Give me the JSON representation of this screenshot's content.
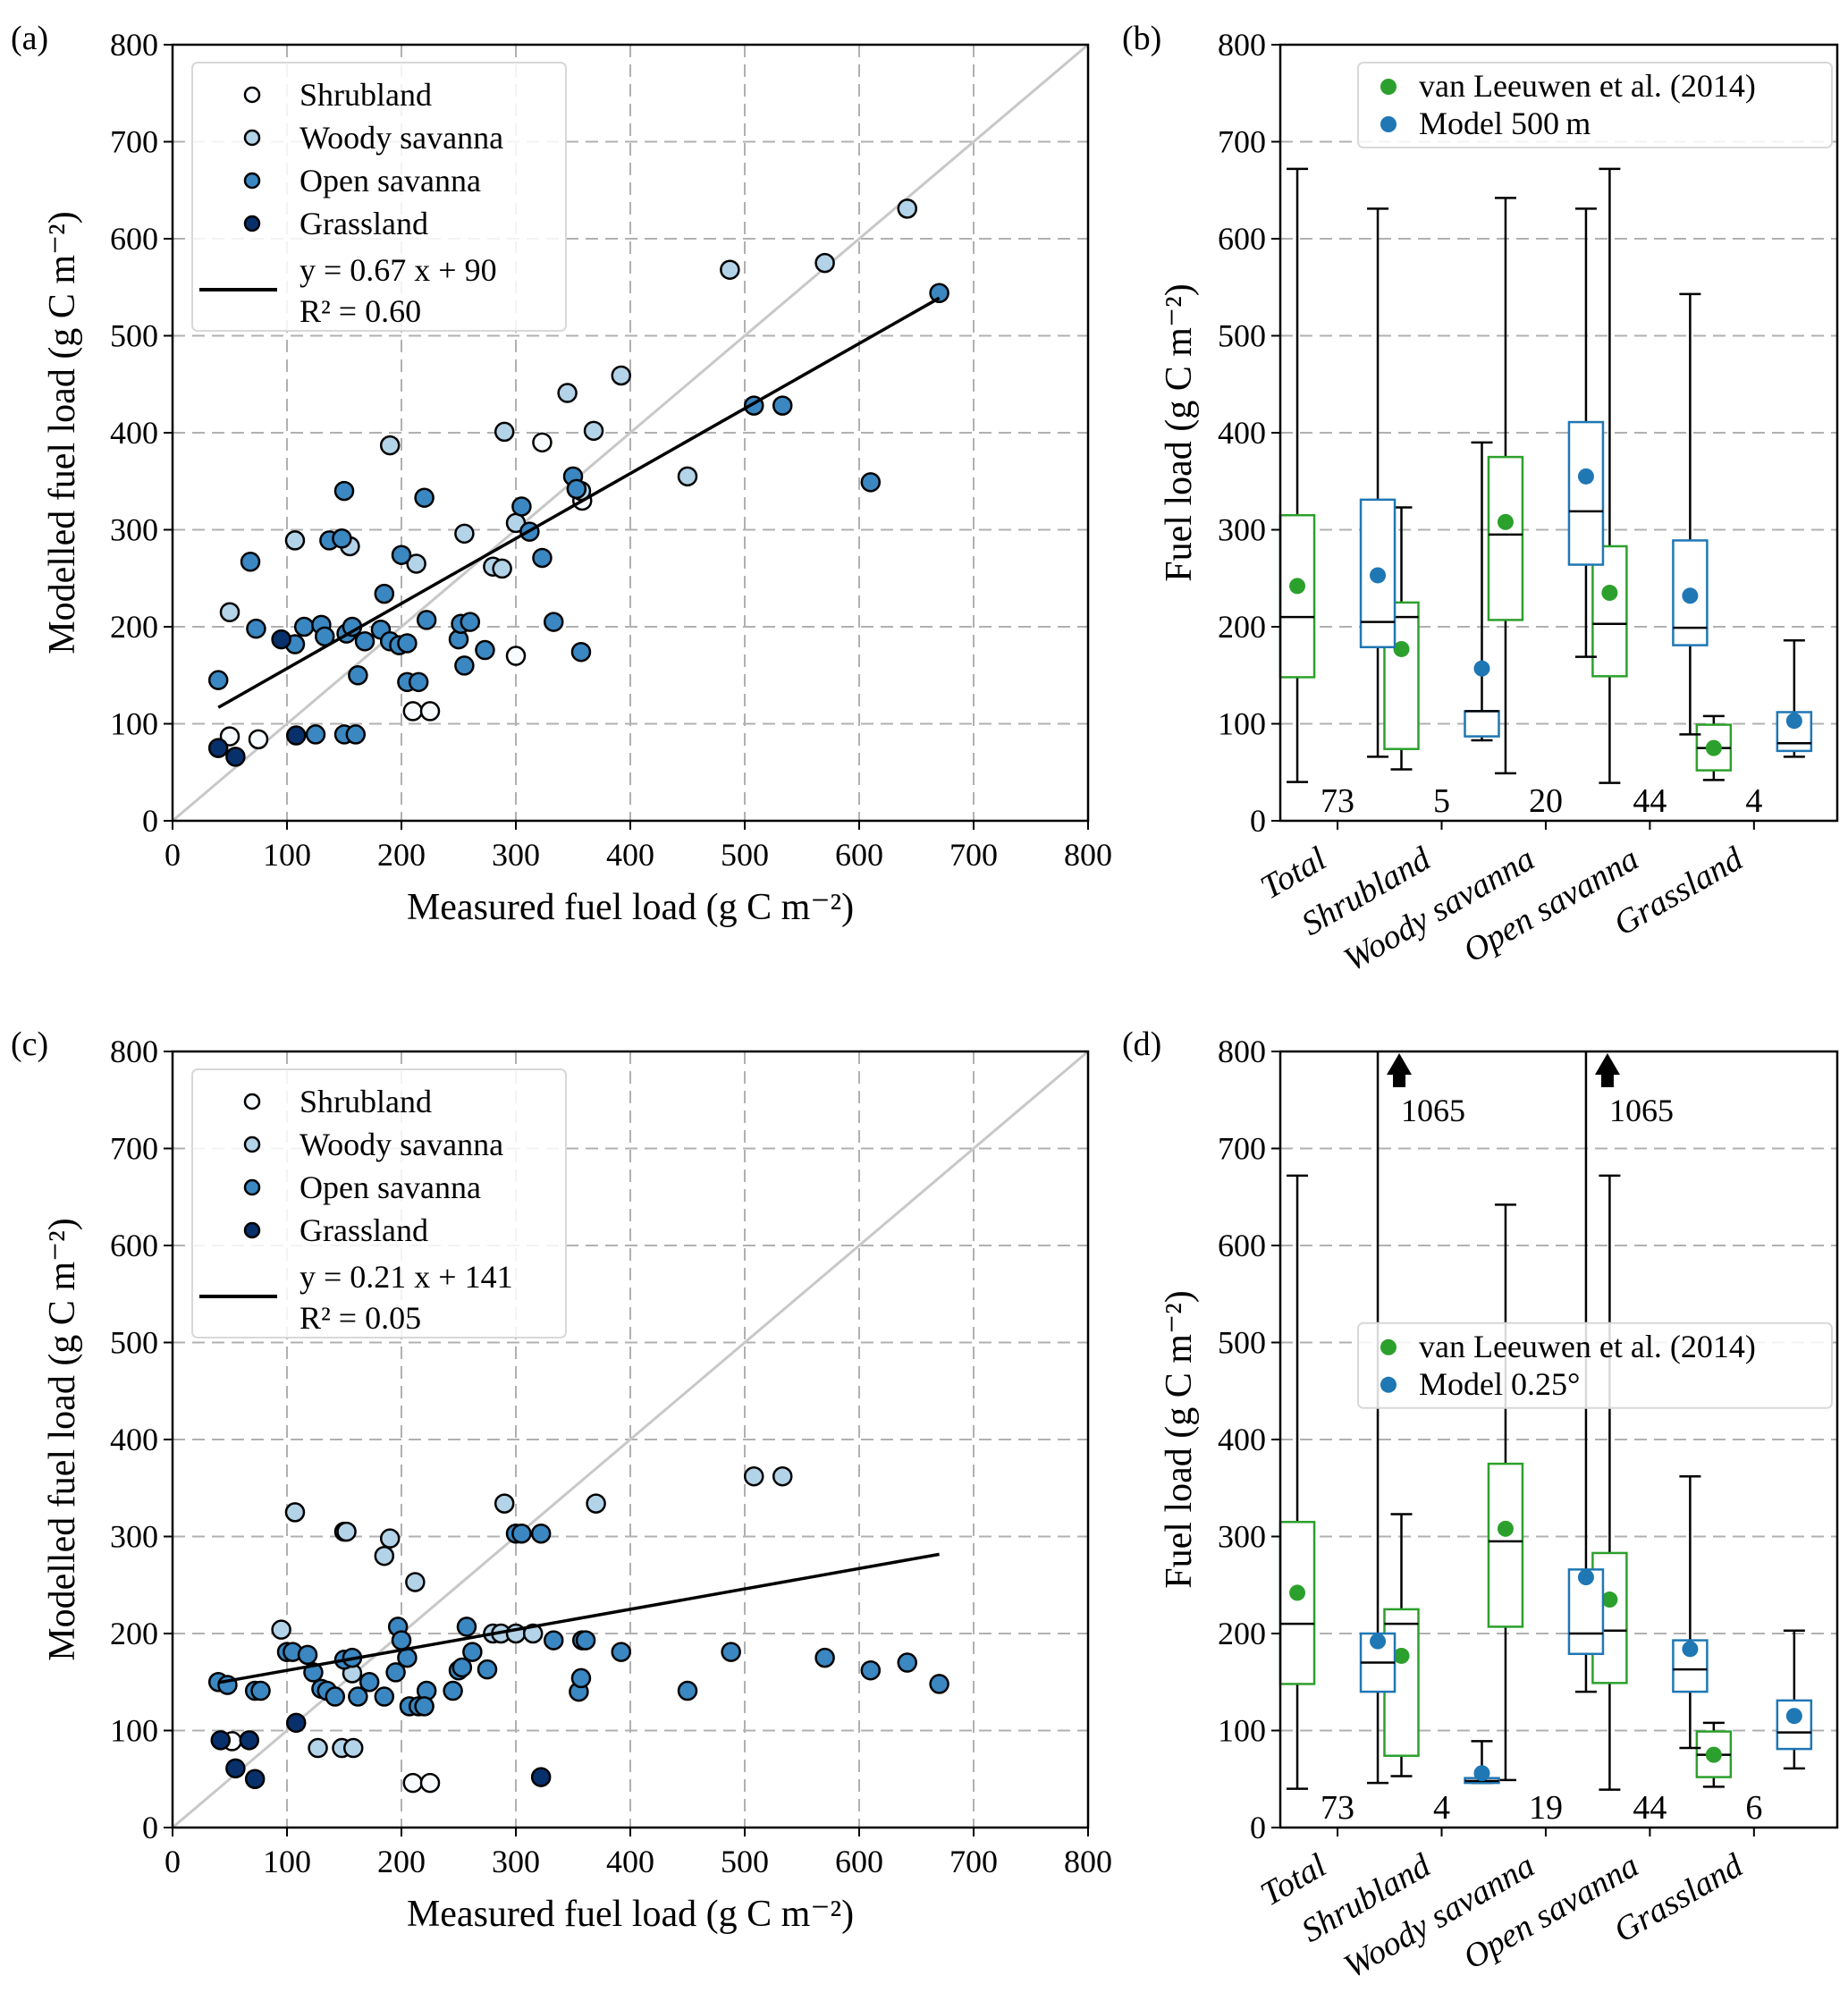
{
  "colors": {
    "Shrubland": "#f7fbff",
    "Woody savanna": "#b3d3e8",
    "Open savanna": "#3a87c1",
    "Grassland": "#08306b",
    "observed": "#2ca02c",
    "model": "#1f77b4",
    "grid": "#b0b0b0",
    "one_to_one": "#c8c8c8",
    "fit": "#000000"
  },
  "chart_data": [
    {
      "panel": "(a)",
      "type": "scatter",
      "xlabel": "Measured fuel load (g C m⁻²)",
      "ylabel": "Modelled fuel load (g C m⁻²)",
      "xlim": [
        0,
        800
      ],
      "ylim": [
        0,
        800
      ],
      "xticks": [
        "0",
        "100",
        "200",
        "300",
        "400",
        "500",
        "600",
        "700",
        "800"
      ],
      "yticks": [
        "0",
        "100",
        "200",
        "300",
        "400",
        "500",
        "600",
        "700",
        "800"
      ],
      "grid": true,
      "legend_position": "top-left",
      "fit": {
        "slope": 0.67,
        "intercept": 90,
        "x_range": [
          40,
          670
        ],
        "label": "y = 0.67 x + 90",
        "r2_label": "R² = 0.60"
      },
      "series": [
        {
          "name": "Shrubland",
          "points": [
            [
              50,
              87
            ],
            [
              75,
              84
            ],
            [
              210,
              113
            ],
            [
              225,
              113
            ],
            [
              300,
              170
            ],
            [
              323,
              390
            ],
            [
              358,
              330
            ]
          ]
        },
        {
          "name": "Woody savanna",
          "points": [
            [
              50,
              215
            ],
            [
              107,
              289
            ],
            [
              155,
              283
            ],
            [
              190,
              387
            ],
            [
              213,
              265
            ],
            [
              255,
              296
            ],
            [
              280,
              262
            ],
            [
              288,
              260
            ],
            [
              290,
              401
            ],
            [
              300,
              307
            ],
            [
              345,
              441
            ],
            [
              357,
              340
            ],
            [
              368,
              402
            ],
            [
              392,
              459
            ],
            [
              450,
              355
            ],
            [
              487,
              568
            ],
            [
              570,
              575
            ],
            [
              642,
              631
            ]
          ]
        },
        {
          "name": "Open savanna",
          "points": [
            [
              40,
              145
            ],
            [
              68,
              267
            ],
            [
              73,
              198
            ],
            [
              107,
              182
            ],
            [
              115,
              200
            ],
            [
              130,
              202
            ],
            [
              133,
              190
            ],
            [
              137,
              289
            ],
            [
              148,
              291
            ],
            [
              150,
              340
            ],
            [
              152,
              193
            ],
            [
              157,
              200
            ],
            [
              162,
              150
            ],
            [
              168,
              185
            ],
            [
              182,
              197
            ],
            [
              185,
              234
            ],
            [
              190,
              185
            ],
            [
              198,
              181
            ],
            [
              200,
              274
            ],
            [
              205,
              183
            ],
            [
              205,
              143
            ],
            [
              215,
              143
            ],
            [
              220,
              333
            ],
            [
              222,
              207
            ],
            [
              250,
              187
            ],
            [
              252,
              203
            ],
            [
              255,
              160
            ],
            [
              260,
              205
            ],
            [
              273,
              176
            ],
            [
              305,
              324
            ],
            [
              312,
              298
            ],
            [
              323,
              271
            ],
            [
              333,
              205
            ],
            [
              350,
              355
            ],
            [
              353,
              342
            ],
            [
              357,
              174
            ],
            [
              508,
              428
            ],
            [
              533,
              428
            ],
            [
              610,
              349
            ],
            [
              670,
              544
            ],
            [
              125,
              89
            ],
            [
              150,
              89
            ],
            [
              160,
              89
            ]
          ]
        },
        {
          "name": "Grassland",
          "points": [
            [
              40,
              75
            ],
            [
              55,
              66
            ],
            [
              108,
              88
            ],
            [
              95,
              187
            ]
          ]
        }
      ]
    },
    {
      "panel": "(b)",
      "type": "box",
      "ylabel": "Fuel load (g C m⁻²)",
      "ylim": [
        0,
        800
      ],
      "yticks": [
        "0",
        "100",
        "200",
        "300",
        "400",
        "500",
        "600",
        "700",
        "800"
      ],
      "grid": true,
      "legend_position": "top-right",
      "legend": [
        "van Leeuwen et al. (2014)",
        "Model 500 m"
      ],
      "categories": [
        "Total",
        "Shrubland",
        "Woody savanna",
        "Open savanna",
        "Grassland"
      ],
      "counts": [
        "73",
        "5",
        "20",
        "44",
        "4"
      ],
      "series": [
        {
          "name": "van Leeuwen et al. (2014)",
          "boxes": [
            {
              "whislo": 40,
              "q1": 148,
              "med": 210,
              "q3": 315,
              "whishi": 672,
              "mean": 242
            },
            {
              "whislo": 53,
              "q1": 74,
              "med": 210,
              "q3": 225,
              "whishi": 323,
              "mean": 177
            },
            {
              "whislo": 49,
              "q1": 207,
              "med": 295,
              "q3": 375,
              "whishi": 642,
              "mean": 308
            },
            {
              "whislo": 39,
              "q1": 149,
              "med": 203,
              "q3": 283,
              "whishi": 672,
              "mean": 235
            },
            {
              "whislo": 42,
              "q1": 52,
              "med": 75,
              "q3": 99,
              "whishi": 108,
              "mean": 75
            }
          ]
        },
        {
          "name": "Model 500 m",
          "boxes": [
            {
              "whislo": 66,
              "q1": 179,
              "med": 205,
              "q3": 331,
              "whishi": 631,
              "mean": 253
            },
            {
              "whislo": 83,
              "q1": 87,
              "med": 113,
              "q3": 113,
              "whishi": 390,
              "mean": 157
            },
            {
              "whislo": 169,
              "q1": 264,
              "med": 319,
              "q3": 411,
              "whishi": 631,
              "mean": 355
            },
            {
              "whislo": 89,
              "q1": 181,
              "med": 199,
              "q3": 289,
              "whishi": 543,
              "mean": 232
            },
            {
              "whislo": 66,
              "q1": 72,
              "med": 80,
              "q3": 112,
              "whishi": 186,
              "mean": 103
            }
          ]
        }
      ]
    },
    {
      "panel": "(c)",
      "type": "scatter",
      "xlabel": "Measured fuel load (g C m⁻²)",
      "ylabel": "Modelled fuel load (g C m⁻²)",
      "xlim": [
        0,
        800
      ],
      "ylim": [
        0,
        800
      ],
      "xticks": [
        "0",
        "100",
        "200",
        "300",
        "400",
        "500",
        "600",
        "700",
        "800"
      ],
      "yticks": [
        "0",
        "100",
        "200",
        "300",
        "400",
        "500",
        "600",
        "700",
        "800"
      ],
      "grid": true,
      "legend_position": "top-left",
      "fit": {
        "slope": 0.21,
        "intercept": 141,
        "x_range": [
          40,
          670
        ],
        "label": "y = 0.21 x + 141",
        "r2_label": "R² = 0.05"
      },
      "series": [
        {
          "name": "Shrubland",
          "points": [
            [
              52,
              89
            ],
            [
              210,
              46
            ],
            [
              225,
              46
            ]
          ]
        },
        {
          "name": "Woody savanna",
          "points": [
            [
              95,
              204
            ],
            [
              107,
              325
            ],
            [
              127,
              82
            ],
            [
              148,
              82
            ],
            [
              150,
              305
            ],
            [
              152,
              305
            ],
            [
              158,
              82
            ],
            [
              157,
              159
            ],
            [
              185,
              280
            ],
            [
              190,
              298
            ],
            [
              212,
              253
            ],
            [
              290,
              334
            ],
            [
              280,
              200
            ],
            [
              287,
              200
            ],
            [
              300,
              200
            ],
            [
              315,
              200
            ],
            [
              370,
              334
            ],
            [
              508,
              362
            ],
            [
              533,
              362
            ]
          ]
        },
        {
          "name": "Open savanna",
          "points": [
            [
              40,
              150
            ],
            [
              48,
              147
            ],
            [
              72,
              141
            ],
            [
              77,
              141
            ],
            [
              100,
              181
            ],
            [
              105,
              181
            ],
            [
              118,
              178
            ],
            [
              123,
              160
            ],
            [
              130,
              143
            ],
            [
              135,
              141
            ],
            [
              142,
              135
            ],
            [
              150,
              173
            ],
            [
              157,
              175
            ],
            [
              162,
              135
            ],
            [
              172,
              150
            ],
            [
              185,
              135
            ],
            [
              195,
              160
            ],
            [
              197,
              207
            ],
            [
              200,
              193
            ],
            [
              205,
              175
            ],
            [
              207,
              125
            ],
            [
              215,
              125
            ],
            [
              222,
              141
            ],
            [
              220,
              125
            ],
            [
              245,
              141
            ],
            [
              250,
              162
            ],
            [
              253,
              165
            ],
            [
              257,
              207
            ],
            [
              262,
              181
            ],
            [
              275,
              163
            ],
            [
              300,
              303
            ],
            [
              305,
              303
            ],
            [
              322,
              303
            ],
            [
              333,
              193
            ],
            [
              355,
              140
            ],
            [
              357,
              154
            ],
            [
              358,
              193
            ],
            [
              361,
              193
            ],
            [
              392,
              181
            ],
            [
              450,
              141
            ],
            [
              488,
              181
            ],
            [
              570,
              175
            ],
            [
              610,
              162
            ],
            [
              642,
              170
            ],
            [
              670,
              148
            ]
          ]
        },
        {
          "name": "Grassland",
          "points": [
            [
              42,
              90
            ],
            [
              67,
              90
            ],
            [
              55,
              61
            ],
            [
              72,
              50
            ],
            [
              108,
              108
            ],
            [
              322,
              52
            ]
          ]
        }
      ]
    },
    {
      "panel": "(d)",
      "type": "box",
      "ylabel": "Fuel load (g C m⁻²)",
      "ylim": [
        0,
        800
      ],
      "yticks": [
        "0",
        "100",
        "200",
        "300",
        "400",
        "500",
        "600",
        "700",
        "800"
      ],
      "grid": true,
      "legend_position": "center-right",
      "legend": [
        "van Leeuwen et al. (2014)",
        "Model 0.25°"
      ],
      "categories": [
        "Total",
        "Shrubland",
        "Woody savanna",
        "Open savanna",
        "Grassland"
      ],
      "counts": [
        "73",
        "4",
        "19",
        "44",
        "6"
      ],
      "annotations": [
        {
          "text": "1065",
          "category": "Total"
        },
        {
          "text": "1065",
          "category": "Woody savanna"
        }
      ],
      "series": [
        {
          "name": "van Leeuwen et al. (2014)",
          "boxes": [
            {
              "whislo": 40,
              "q1": 148,
              "med": 210,
              "q3": 315,
              "whishi": 672,
              "mean": 242
            },
            {
              "whislo": 53,
              "q1": 74,
              "med": 210,
              "q3": 225,
              "whishi": 323,
              "mean": 177
            },
            {
              "whislo": 49,
              "q1": 207,
              "med": 295,
              "q3": 375,
              "whishi": 642,
              "mean": 308
            },
            {
              "whislo": 39,
              "q1": 149,
              "med": 203,
              "q3": 283,
              "whishi": 672,
              "mean": 235
            },
            {
              "whislo": 42,
              "q1": 52,
              "med": 75,
              "q3": 99,
              "whishi": 108,
              "mean": 75
            }
          ]
        },
        {
          "name": "Model 0.25°",
          "boxes": [
            {
              "whislo": 46,
              "q1": 140,
              "med": 170,
              "q3": 200,
              "whishi": 1065,
              "mean": 192
            },
            {
              "whislo": 46,
              "q1": 46,
              "med": 48,
              "q3": 51,
              "whishi": 89,
              "mean": 56
            },
            {
              "whislo": 140,
              "q1": 179,
              "med": 200,
              "q3": 266,
              "whishi": 1065,
              "mean": 258
            },
            {
              "whislo": 82,
              "q1": 140,
              "med": 163,
              "q3": 193,
              "whishi": 362,
              "mean": 184
            },
            {
              "whislo": 61,
              "q1": 81,
              "med": 98,
              "q3": 131,
              "whishi": 203,
              "mean": 115
            }
          ]
        }
      ]
    }
  ]
}
